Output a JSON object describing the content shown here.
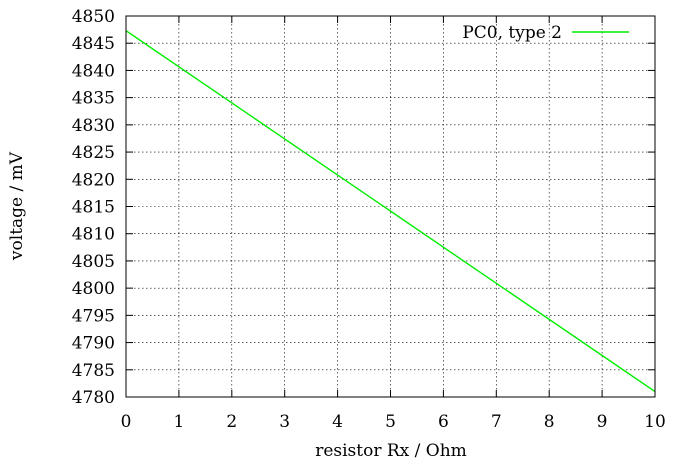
{
  "chart_data": {
    "type": "line",
    "title": "",
    "xlabel": "resistor Rx / Ohm",
    "ylabel": "voltage / mV",
    "xlim": [
      0,
      10
    ],
    "ylim": [
      4780,
      4850
    ],
    "xticks": [
      0,
      1,
      2,
      3,
      4,
      5,
      6,
      7,
      8,
      9,
      10
    ],
    "yticks": [
      4780,
      4785,
      4790,
      4795,
      4800,
      4805,
      4810,
      4815,
      4820,
      4825,
      4830,
      4835,
      4840,
      4845,
      4850
    ],
    "grid": true,
    "legend_position": "top-right",
    "series": [
      {
        "name": "PC0, type 2",
        "color": "#00ee00",
        "x": [
          0,
          10
        ],
        "y": [
          4847.3,
          4781.0
        ]
      }
    ]
  }
}
